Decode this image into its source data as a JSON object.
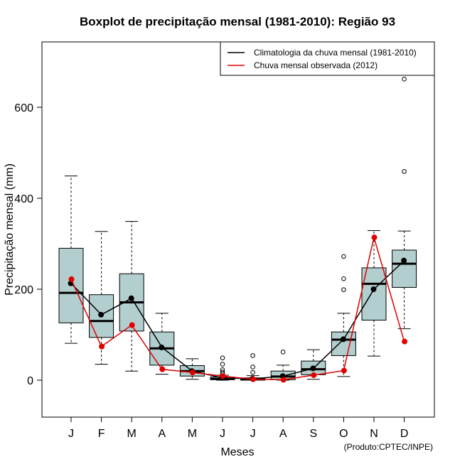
{
  "chart_data": {
    "type": "boxplot",
    "title": "Boxplot de precipitação mensal (1981-2010): Região 93",
    "xlabel": "Meses",
    "ylabel": "Precipitação mensal (mm)",
    "ylim": [
      -80,
      740
    ],
    "yticks": [
      0,
      200,
      400,
      600
    ],
    "categories": [
      "J",
      "F",
      "M",
      "A",
      "M",
      "J",
      "J",
      "A",
      "S",
      "O",
      "N",
      "D"
    ],
    "boxes": [
      {
        "whisker_low": 81,
        "q1": 126,
        "median": 192,
        "q3": 290,
        "whisker_high": 449,
        "outliers": []
      },
      {
        "whisker_low": 35,
        "q1": 94,
        "median": 130,
        "q3": 188,
        "whisker_high": 327,
        "outliers": []
      },
      {
        "whisker_low": 20,
        "q1": 108,
        "median": 171,
        "q3": 234,
        "whisker_high": 349,
        "outliers": []
      },
      {
        "whisker_low": 13,
        "q1": 33,
        "median": 70,
        "q3": 106,
        "whisker_high": 147,
        "outliers": []
      },
      {
        "whisker_low": 2,
        "q1": 9,
        "median": 20,
        "q3": 32,
        "whisker_high": 47,
        "outliers": []
      },
      {
        "whisker_low": 0,
        "q1": 1,
        "median": 3,
        "q3": 7,
        "whisker_high": 11,
        "outliers": [
          14,
          18,
          23,
          35,
          49
        ]
      },
      {
        "whisker_low": 0,
        "q1": 0,
        "median": 2,
        "q3": 5,
        "whisker_high": 10,
        "outliers": [
          17,
          29,
          54
        ]
      },
      {
        "whisker_low": 0,
        "q1": 1,
        "median": 8,
        "q3": 20,
        "whisker_high": 33,
        "outliers": [
          62
        ]
      },
      {
        "whisker_low": 2,
        "q1": 12,
        "median": 24,
        "q3": 42,
        "whisker_high": 67,
        "outliers": []
      },
      {
        "whisker_low": 8,
        "q1": 54,
        "median": 89,
        "q3": 106,
        "whisker_high": 147,
        "outliers": [
          199,
          223,
          272
        ]
      },
      {
        "whisker_low": 53,
        "q1": 132,
        "median": 212,
        "q3": 247,
        "whisker_high": 329,
        "outliers": []
      },
      {
        "whisker_low": 113,
        "q1": 204,
        "median": 256,
        "q3": 286,
        "whisker_high": 328,
        "outliers": [
          459,
          662
        ]
      }
    ],
    "series": [
      {
        "name": "Climatologia da chuva mensal (1981-2010)",
        "color": "#000000",
        "values": [
          213,
          144,
          180,
          72,
          20,
          5,
          3,
          9,
          26,
          90,
          200,
          263
        ]
      },
      {
        "name": "Chuva mensal observada (2012)",
        "color": "#e00000",
        "values": [
          222,
          74,
          121,
          24,
          17,
          9,
          2,
          1,
          11,
          21,
          314,
          85
        ]
      }
    ],
    "legend_position": "top-right",
    "box_fill": "#b3cece",
    "credit": "(Produto:CPTEC/INPE)"
  }
}
